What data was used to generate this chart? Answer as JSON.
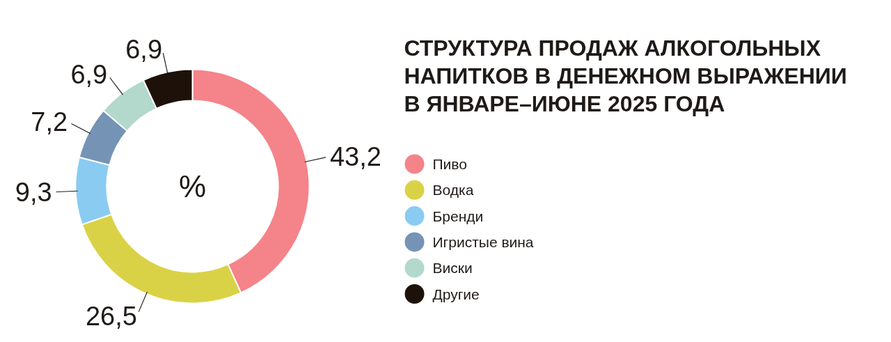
{
  "chart_data": {
    "type": "donut",
    "title": "СТРУКТУРА ПРОДАЖ АЛКОГОЛЬНЫХ НАПИТКОВ В ДЕНЕЖНОМ ВЫРАЖЕНИИ В ЯНВАРЕ–ИЮНЕ 2025 ГОДА",
    "categories": [
      "Пиво",
      "Водка",
      "Бренди",
      "Игристые вина",
      "Виски",
      "Другие"
    ],
    "values": [
      43.2,
      26.5,
      9.3,
      7.2,
      6.9,
      6.9
    ],
    "colors": [
      "#f5838a",
      "#dad246",
      "#8acbf1",
      "#7593b5",
      "#b2d9cc",
      "#1e110a"
    ],
    "value_labels": [
      "43,2",
      "26,5",
      "9,3",
      "7,2",
      "6,9",
      "6,9"
    ],
    "annotations": [
      "%"
    ],
    "legend": "right"
  }
}
